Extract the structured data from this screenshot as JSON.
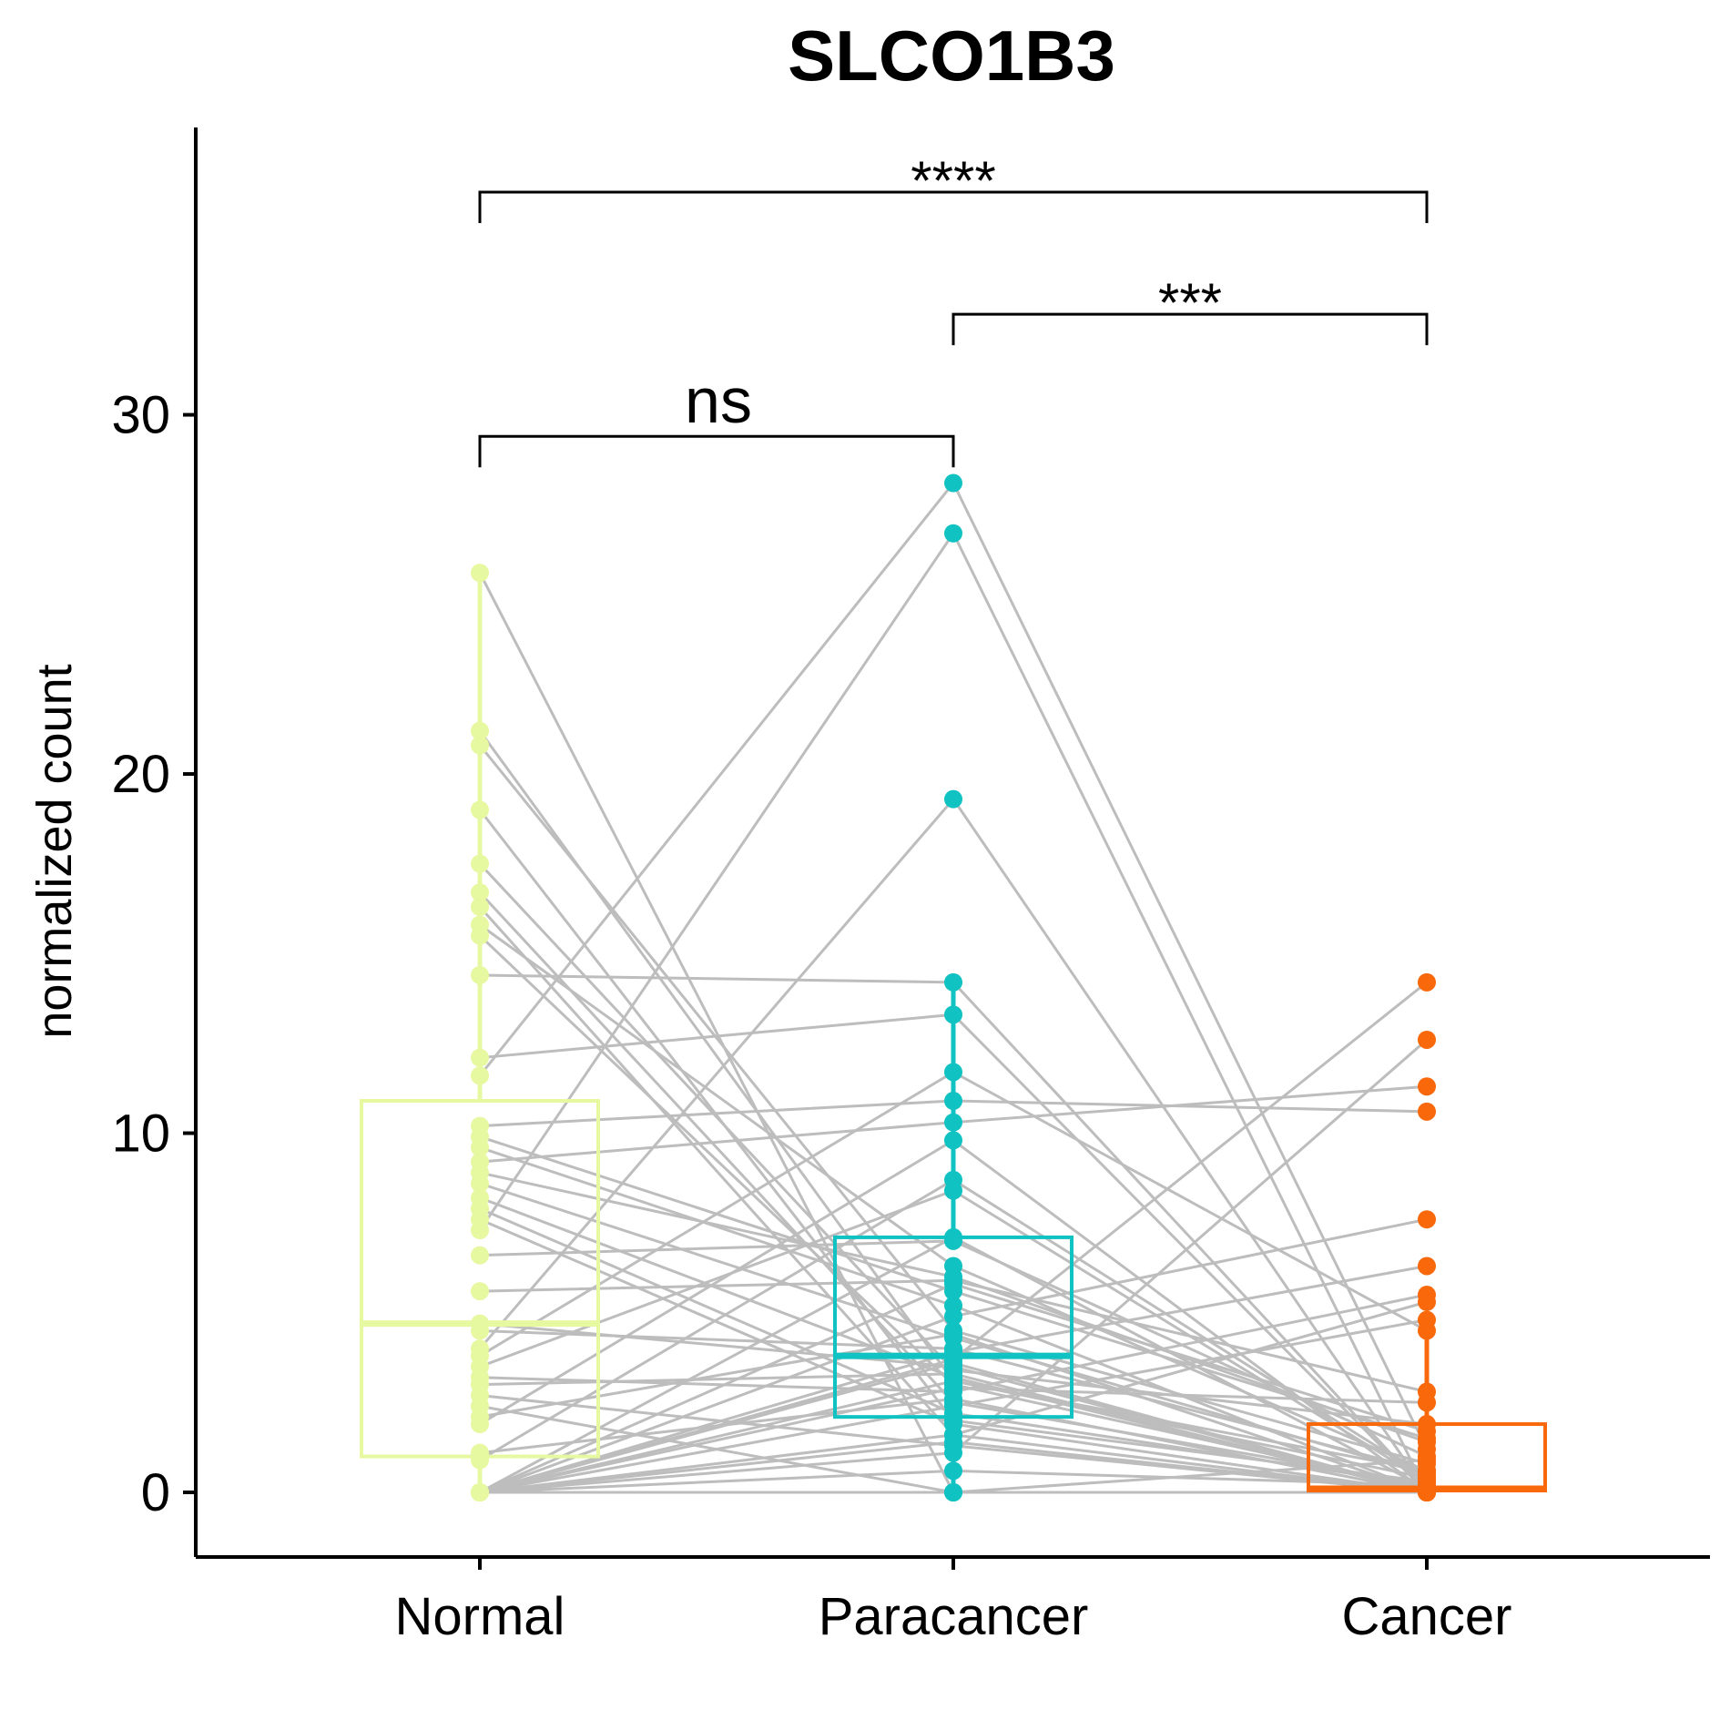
{
  "chart_data": {
    "type": "box-paired",
    "title": "SLCO1B3",
    "ylabel": "normalized count",
    "xlabel": "",
    "categories": [
      "Normal",
      "Paracancer",
      "Cancer"
    ],
    "colors": {
      "Normal": "#e6f8a0",
      "Paracancer": "#10c2c2",
      "Cancer": "#f9680a",
      "pair_line": "#bdbdbd"
    },
    "ylim": [
      -1.8,
      38
    ],
    "yticks": [
      0,
      10,
      20,
      30
    ],
    "grid": false,
    "legend": "none",
    "boxes": [
      {
        "group": "Normal",
        "q1": 1.0,
        "median": 4.7,
        "q3": 10.9,
        "whisker_low": 0,
        "whisker_high": 25.6
      },
      {
        "group": "Paracancer",
        "q1": 2.1,
        "median": 3.8,
        "q3": 7.1,
        "whisker_low": 0,
        "whisker_high": 14.2
      },
      {
        "group": "Cancer",
        "q1": 0.05,
        "median": 0.1,
        "q3": 1.9,
        "whisker_low": 0,
        "whisker_high": 4.5
      }
    ],
    "pairs": [
      [
        25.6,
        0.0,
        0.0
      ],
      [
        21.2,
        3.1,
        0.4
      ],
      [
        20.8,
        4.5,
        0.8
      ],
      [
        19.0,
        2.0,
        0.3
      ],
      [
        17.5,
        3.4,
        1.9
      ],
      [
        16.7,
        2.5,
        0.2
      ],
      [
        16.3,
        1.6,
        0.0
      ],
      [
        15.8,
        6.3,
        0.6
      ],
      [
        15.5,
        3.0,
        0.1
      ],
      [
        14.4,
        14.2,
        0.0
      ],
      [
        12.1,
        13.3,
        0.0
      ],
      [
        11.6,
        28.1,
        1.2
      ],
      [
        10.2,
        10.9,
        10.6
      ],
      [
        9.9,
        5.6,
        1.5
      ],
      [
        9.6,
        5.2,
        0.0
      ],
      [
        9.2,
        10.3,
        11.3
      ],
      [
        8.9,
        6.0,
        1.4
      ],
      [
        8.6,
        4.3,
        0.5
      ],
      [
        8.2,
        3.2,
        0.0
      ],
      [
        7.9,
        2.2,
        0.2
      ],
      [
        7.6,
        1.9,
        0.0
      ],
      [
        7.3,
        26.7,
        0.0
      ],
      [
        6.6,
        7.0,
        1.0
      ],
      [
        5.6,
        5.9,
        2.8
      ],
      [
        4.7,
        3.5,
        0.0
      ],
      [
        4.5,
        4.0,
        0.6
      ],
      [
        4.0,
        19.3,
        0.0
      ],
      [
        3.8,
        11.7,
        4.5
      ],
      [
        3.5,
        8.4,
        0.3
      ],
      [
        3.2,
        2.8,
        5.5
      ],
      [
        3.0,
        3.3,
        0.0
      ],
      [
        2.7,
        1.3,
        0.0
      ],
      [
        2.4,
        0.0,
        0.9
      ],
      [
        2.1,
        4.4,
        0.0
      ],
      [
        1.9,
        9.8,
        0.0
      ],
      [
        1.1,
        2.6,
        0.0
      ],
      [
        0.9,
        8.7,
        0.4
      ],
      [
        0.0,
        3.7,
        14.2
      ],
      [
        0.0,
        1.1,
        12.6
      ],
      [
        0.0,
        4.9,
        7.6
      ],
      [
        0.0,
        3.9,
        6.3
      ],
      [
        0.0,
        1.6,
        5.3
      ],
      [
        0.0,
        2.4,
        4.8
      ],
      [
        0.0,
        5.8,
        1.7
      ],
      [
        0.0,
        0.6,
        0.2
      ],
      [
        0.0,
        3.6,
        0.0
      ],
      [
        0.0,
        2.9,
        2.5
      ],
      [
        0.0,
        1.4,
        0.0
      ],
      [
        0.0,
        7.1,
        0.1
      ],
      [
        0.0,
        3.1,
        0.6
      ],
      [
        0.0,
        0.0,
        0.0
      ]
    ],
    "comparisons": [
      {
        "group1": "Normal",
        "group2": "Paracancer",
        "label": "ns",
        "y": 29.4
      },
      {
        "group1": "Paracancer",
        "group2": "Cancer",
        "label": "***",
        "y": 32.8
      },
      {
        "group1": "Normal",
        "group2": "Cancer",
        "label": "****",
        "y": 36.2
      }
    ]
  }
}
